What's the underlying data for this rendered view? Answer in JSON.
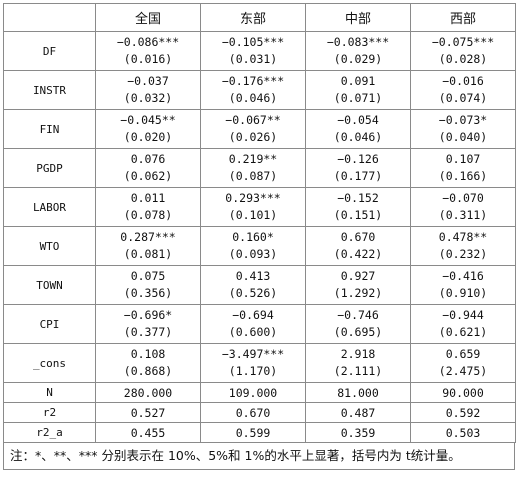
{
  "table": {
    "headers": [
      "",
      "全国",
      "东部",
      "中部",
      "西部"
    ],
    "rows": [
      {
        "var": "DF",
        "coef": [
          "−0.086***",
          "−0.105***",
          "−0.083***",
          "−0.075***"
        ],
        "se": [
          "(0.016)",
          "(0.031)",
          "(0.029)",
          "(0.028)"
        ]
      },
      {
        "var": "INSTR",
        "coef": [
          "−0.037",
          "−0.176***",
          "0.091",
          "−0.016"
        ],
        "se": [
          "(0.032)",
          "(0.046)",
          "(0.071)",
          "(0.074)"
        ]
      },
      {
        "var": "FIN",
        "coef": [
          "−0.045**",
          "−0.067**",
          "−0.054",
          "−0.073*"
        ],
        "se": [
          "(0.020)",
          "(0.026)",
          "(0.046)",
          "(0.040)"
        ]
      },
      {
        "var": "PGDP",
        "coef": [
          "0.076",
          "0.219**",
          "−0.126",
          "0.107"
        ],
        "se": [
          "(0.062)",
          "(0.087)",
          "(0.177)",
          "(0.166)"
        ]
      },
      {
        "var": "LABOR",
        "coef": [
          "0.011",
          "0.293***",
          "−0.152",
          "−0.070"
        ],
        "se": [
          "(0.078)",
          "(0.101)",
          "(0.151)",
          "(0.311)"
        ]
      },
      {
        "var": "WTO",
        "coef": [
          "0.287***",
          "0.160*",
          "0.670",
          "0.478**"
        ],
        "se": [
          "(0.081)",
          "(0.093)",
          "(0.422)",
          "(0.232)"
        ]
      },
      {
        "var": "TOWN",
        "coef": [
          "0.075",
          "0.413",
          "0.927",
          "−0.416"
        ],
        "se": [
          "(0.356)",
          "(0.526)",
          "(1.292)",
          "(0.910)"
        ]
      },
      {
        "var": "CPI",
        "coef": [
          "−0.696*",
          "−0.694",
          "−0.746",
          "−0.944"
        ],
        "se": [
          "(0.377)",
          "(0.600)",
          "(0.695)",
          "(0.621)"
        ]
      },
      {
        "var": "_cons",
        "coef": [
          "0.108",
          "−3.497***",
          "2.918",
          "0.659"
        ],
        "se": [
          "(0.868)",
          "(1.170)",
          "(2.111)",
          "(2.475)"
        ]
      }
    ],
    "stats": [
      {
        "var": "N",
        "values": [
          "280.000",
          "109.000",
          "81.000",
          "90.000"
        ]
      },
      {
        "var": "r2",
        "values": [
          "0.527",
          "0.670",
          "0.487",
          "0.592"
        ]
      },
      {
        "var": "r2_a",
        "values": [
          "0.455",
          "0.599",
          "0.359",
          "0.503"
        ]
      }
    ]
  },
  "note": "注：*、**、*** 分别表示在 10%、5%和 1%的水平上显著，括号内为 t统计量。"
}
